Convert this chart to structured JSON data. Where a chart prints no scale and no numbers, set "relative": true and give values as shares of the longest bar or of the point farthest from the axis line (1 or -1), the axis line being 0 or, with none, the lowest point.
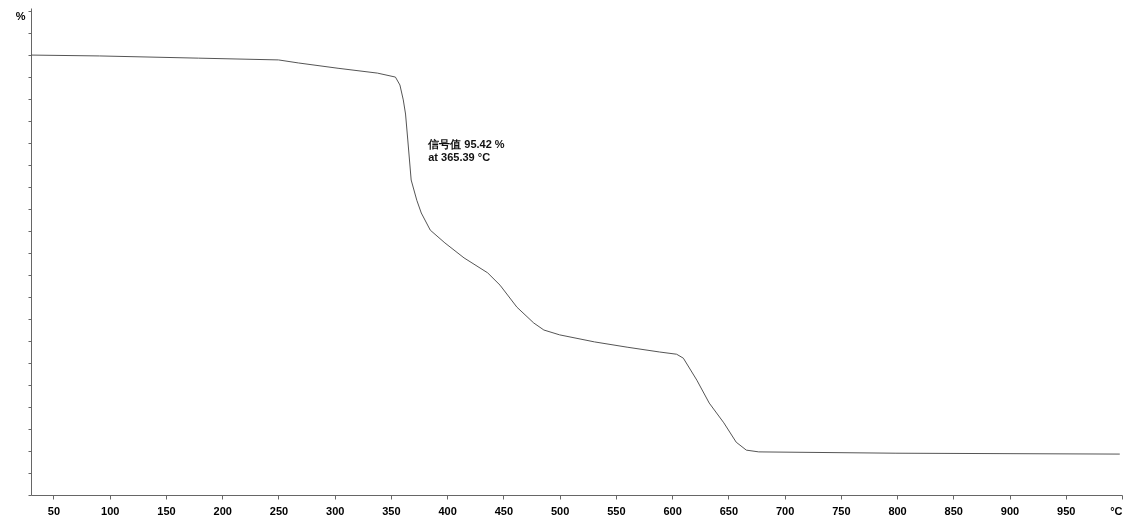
{
  "chart_data": {
    "type": "line",
    "relative": true,
    "ylabel": "%",
    "color": "#555555",
    "x": [
      30,
      91,
      179,
      250,
      268,
      303,
      338,
      354,
      358,
      361,
      363,
      365,
      368,
      373,
      377,
      385,
      398,
      415,
      436,
      447,
      462,
      477,
      486,
      500,
      531,
      560,
      589,
      604,
      610,
      622,
      633,
      646,
      657,
      666,
      677,
      799,
      998
    ],
    "values": [
      1.0,
      0.998,
      0.993,
      0.989,
      0.982,
      0.97,
      0.959,
      0.95,
      0.932,
      0.898,
      0.866,
      0.807,
      0.716,
      0.67,
      0.641,
      0.602,
      0.573,
      0.539,
      0.505,
      0.477,
      0.427,
      0.391,
      0.375,
      0.364,
      0.348,
      0.336,
      0.325,
      0.32,
      0.311,
      0.261,
      0.209,
      0.164,
      0.12,
      0.102,
      0.098,
      0.095,
      0.093
    ],
    "xlim": [
      30,
      1000
    ],
    "xticks": [
      50,
      100,
      150,
      200,
      250,
      300,
      350,
      400,
      450,
      500,
      550,
      600,
      650,
      700,
      750,
      800,
      850,
      900,
      950,
      {
        "value": 1000,
        "label": "°C"
      }
    ],
    "annotations": [
      {
        "text": "信号值   95.42 %",
        "x": 365.39
      },
      {
        "text": "at         365.39 °C",
        "x": 365.39
      }
    ],
    "grid": false,
    "marker": "none",
    "line_style": "solid"
  }
}
